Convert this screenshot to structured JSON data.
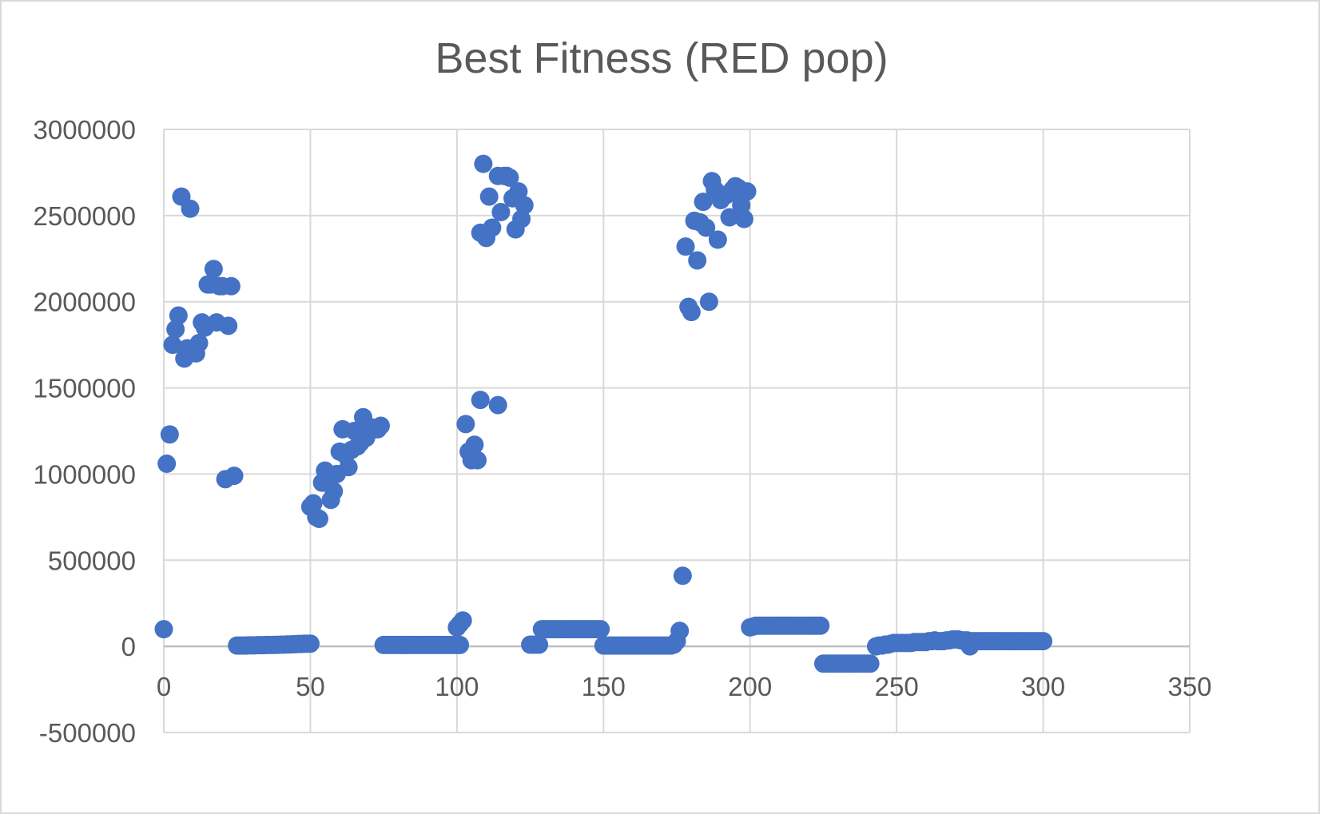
{
  "chart_data": {
    "type": "scatter",
    "title": "Best Fitness (RED pop)",
    "xlabel": "",
    "ylabel": "",
    "xlim": [
      0,
      350
    ],
    "ylim": [
      -500000,
      3000000
    ],
    "x_ticks": [
      0,
      50,
      100,
      150,
      200,
      250,
      300,
      350
    ],
    "x_tick_labels": [
      "0",
      "50",
      "100",
      "150",
      "200",
      "250",
      "300",
      "350"
    ],
    "y_ticks": [
      -500000,
      0,
      500000,
      1000000,
      1500000,
      2000000,
      2500000,
      3000000
    ],
    "y_tick_labels": [
      "-500000",
      "0",
      "500000",
      "1000000",
      "1500000",
      "2000000",
      "2500000",
      "3000000"
    ],
    "grid": true,
    "legend": "none",
    "series_color": "#4472c4",
    "points": [
      [
        0,
        100000
      ],
      [
        1,
        1060000
      ],
      [
        2,
        1230000
      ],
      [
        3,
        1750000
      ],
      [
        4,
        1840000
      ],
      [
        5,
        1920000
      ],
      [
        6,
        2610000
      ],
      [
        7,
        1670000
      ],
      [
        8,
        1730000
      ],
      [
        9,
        2540000
      ],
      [
        10,
        1720000
      ],
      [
        11,
        1700000
      ],
      [
        12,
        1760000
      ],
      [
        13,
        1880000
      ],
      [
        14,
        1850000
      ],
      [
        15,
        2100000
      ],
      [
        16,
        2100000
      ],
      [
        17,
        2190000
      ],
      [
        18,
        1880000
      ],
      [
        19,
        2090000
      ],
      [
        20,
        2090000
      ],
      [
        21,
        970000
      ],
      [
        22,
        1860000
      ],
      [
        23,
        2090000
      ],
      [
        24,
        990000
      ],
      [
        25,
        5000
      ],
      [
        26,
        5000
      ],
      [
        27,
        5000
      ],
      [
        28,
        5000
      ],
      [
        29,
        6000
      ],
      [
        30,
        6000
      ],
      [
        31,
        6000
      ],
      [
        32,
        7000
      ],
      [
        33,
        7000
      ],
      [
        34,
        7000
      ],
      [
        35,
        8000
      ],
      [
        36,
        8000
      ],
      [
        37,
        8000
      ],
      [
        38,
        9000
      ],
      [
        39,
        9000
      ],
      [
        40,
        10000
      ],
      [
        41,
        10000
      ],
      [
        42,
        11000
      ],
      [
        43,
        11000
      ],
      [
        44,
        12000
      ],
      [
        45,
        13000
      ],
      [
        46,
        14000
      ],
      [
        47,
        14000
      ],
      [
        48,
        15000
      ],
      [
        49,
        15000
      ],
      [
        50,
        16000
      ],
      [
        50,
        810000
      ],
      [
        51,
        830000
      ],
      [
        52,
        750000
      ],
      [
        53,
        740000
      ],
      [
        54,
        950000
      ],
      [
        55,
        1020000
      ],
      [
        56,
        990000
      ],
      [
        57,
        850000
      ],
      [
        58,
        900000
      ],
      [
        59,
        1000000
      ],
      [
        60,
        1130000
      ],
      [
        61,
        1260000
      ],
      [
        62,
        1110000
      ],
      [
        63,
        1040000
      ],
      [
        64,
        1140000
      ],
      [
        65,
        1250000
      ],
      [
        66,
        1160000
      ],
      [
        67,
        1180000
      ],
      [
        68,
        1330000
      ],
      [
        69,
        1210000
      ],
      [
        70,
        1250000
      ],
      [
        71,
        1270000
      ],
      [
        72,
        1260000
      ],
      [
        73,
        1260000
      ],
      [
        74,
        1280000
      ],
      [
        75,
        8000
      ],
      [
        76,
        8000
      ],
      [
        77,
        8000
      ],
      [
        78,
        8000
      ],
      [
        79,
        8000
      ],
      [
        80,
        8000
      ],
      [
        81,
        8000
      ],
      [
        82,
        8000
      ],
      [
        83,
        8000
      ],
      [
        84,
        8000
      ],
      [
        85,
        8000
      ],
      [
        86,
        8000
      ],
      [
        87,
        8000
      ],
      [
        88,
        8000
      ],
      [
        89,
        8000
      ],
      [
        90,
        8000
      ],
      [
        91,
        8000
      ],
      [
        92,
        8000
      ],
      [
        93,
        8000
      ],
      [
        94,
        8000
      ],
      [
        95,
        8000
      ],
      [
        96,
        8000
      ],
      [
        97,
        8000
      ],
      [
        98,
        8000
      ],
      [
        99,
        8000
      ],
      [
        100,
        8000
      ],
      [
        101,
        8000
      ],
      [
        100,
        110000
      ],
      [
        101,
        130000
      ],
      [
        102,
        150000
      ],
      [
        103,
        1290000
      ],
      [
        104,
        1130000
      ],
      [
        105,
        1080000
      ],
      [
        106,
        1170000
      ],
      [
        107,
        1080000
      ],
      [
        108,
        1430000
      ],
      [
        108,
        2400000
      ],
      [
        109,
        2800000
      ],
      [
        110,
        2370000
      ],
      [
        111,
        2610000
      ],
      [
        112,
        2430000
      ],
      [
        114,
        1400000
      ],
      [
        114,
        2730000
      ],
      [
        115,
        2520000
      ],
      [
        116,
        2730000
      ],
      [
        117,
        2730000
      ],
      [
        118,
        2720000
      ],
      [
        119,
        2600000
      ],
      [
        120,
        2420000
      ],
      [
        121,
        2640000
      ],
      [
        122,
        2480000
      ],
      [
        123,
        2560000
      ],
      [
        125,
        10000
      ],
      [
        126,
        10000
      ],
      [
        127,
        10000
      ],
      [
        128,
        10000
      ],
      [
        129,
        100000
      ],
      [
        130,
        100000
      ],
      [
        131,
        100000
      ],
      [
        132,
        100000
      ],
      [
        133,
        100000
      ],
      [
        134,
        100000
      ],
      [
        135,
        100000
      ],
      [
        136,
        100000
      ],
      [
        137,
        100000
      ],
      [
        138,
        100000
      ],
      [
        139,
        100000
      ],
      [
        140,
        100000
      ],
      [
        141,
        100000
      ],
      [
        142,
        100000
      ],
      [
        143,
        100000
      ],
      [
        144,
        100000
      ],
      [
        145,
        100000
      ],
      [
        146,
        100000
      ],
      [
        147,
        100000
      ],
      [
        148,
        100000
      ],
      [
        149,
        100000
      ],
      [
        150,
        5000
      ],
      [
        151,
        5000
      ],
      [
        152,
        5000
      ],
      [
        153,
        5000
      ],
      [
        154,
        5000
      ],
      [
        155,
        5000
      ],
      [
        156,
        5000
      ],
      [
        157,
        5000
      ],
      [
        158,
        5000
      ],
      [
        159,
        5000
      ],
      [
        160,
        5000
      ],
      [
        161,
        5000
      ],
      [
        162,
        5000
      ],
      [
        163,
        5000
      ],
      [
        164,
        5000
      ],
      [
        165,
        5000
      ],
      [
        166,
        5000
      ],
      [
        167,
        5000
      ],
      [
        168,
        5000
      ],
      [
        169,
        5000
      ],
      [
        170,
        5000
      ],
      [
        171,
        5000
      ],
      [
        172,
        5000
      ],
      [
        173,
        5000
      ],
      [
        174,
        10000
      ],
      [
        175,
        30000
      ],
      [
        176,
        90000
      ],
      [
        177,
        410000
      ],
      [
        178,
        2320000
      ],
      [
        179,
        1970000
      ],
      [
        180,
        1940000
      ],
      [
        181,
        2470000
      ],
      [
        182,
        2240000
      ],
      [
        183,
        2460000
      ],
      [
        184,
        2580000
      ],
      [
        185,
        2430000
      ],
      [
        186,
        2000000
      ],
      [
        187,
        2700000
      ],
      [
        188,
        2650000
      ],
      [
        189,
        2360000
      ],
      [
        190,
        2590000
      ],
      [
        191,
        2620000
      ],
      [
        192,
        2620000
      ],
      [
        193,
        2490000
      ],
      [
        194,
        2650000
      ],
      [
        195,
        2670000
      ],
      [
        196,
        2660000
      ],
      [
        197,
        2560000
      ],
      [
        198,
        2480000
      ],
      [
        199,
        2640000
      ],
      [
        200,
        110000
      ],
      [
        201,
        115000
      ],
      [
        202,
        120000
      ],
      [
        203,
        120000
      ],
      [
        204,
        120000
      ],
      [
        205,
        120000
      ],
      [
        206,
        120000
      ],
      [
        207,
        120000
      ],
      [
        208,
        120000
      ],
      [
        209,
        120000
      ],
      [
        210,
        120000
      ],
      [
        211,
        120000
      ],
      [
        212,
        120000
      ],
      [
        213,
        120000
      ],
      [
        214,
        120000
      ],
      [
        215,
        120000
      ],
      [
        216,
        120000
      ],
      [
        217,
        120000
      ],
      [
        218,
        120000
      ],
      [
        219,
        120000
      ],
      [
        220,
        120000
      ],
      [
        221,
        120000
      ],
      [
        222,
        120000
      ],
      [
        223,
        120000
      ],
      [
        224,
        120000
      ],
      [
        225,
        -100000
      ],
      [
        226,
        -100000
      ],
      [
        227,
        -100000
      ],
      [
        228,
        -100000
      ],
      [
        229,
        -100000
      ],
      [
        230,
        -100000
      ],
      [
        231,
        -100000
      ],
      [
        232,
        -100000
      ],
      [
        233,
        -100000
      ],
      [
        234,
        -100000
      ],
      [
        235,
        -100000
      ],
      [
        236,
        -100000
      ],
      [
        237,
        -100000
      ],
      [
        238,
        -100000
      ],
      [
        239,
        -100000
      ],
      [
        240,
        -100000
      ],
      [
        241,
        -100000
      ],
      [
        243,
        0
      ],
      [
        244,
        5000
      ],
      [
        245,
        5000
      ],
      [
        246,
        10000
      ],
      [
        247,
        10000
      ],
      [
        248,
        15000
      ],
      [
        249,
        20000
      ],
      [
        250,
        20000
      ],
      [
        251,
        20000
      ],
      [
        252,
        20000
      ],
      [
        253,
        20000
      ],
      [
        254,
        20000
      ],
      [
        255,
        20000
      ],
      [
        256,
        25000
      ],
      [
        257,
        25000
      ],
      [
        258,
        25000
      ],
      [
        259,
        25000
      ],
      [
        260,
        25000
      ],
      [
        261,
        30000
      ],
      [
        262,
        30000
      ],
      [
        263,
        35000
      ],
      [
        264,
        30000
      ],
      [
        265,
        30000
      ],
      [
        266,
        30000
      ],
      [
        267,
        35000
      ],
      [
        268,
        35000
      ],
      [
        269,
        40000
      ],
      [
        270,
        40000
      ],
      [
        271,
        40000
      ],
      [
        272,
        35000
      ],
      [
        273,
        35000
      ],
      [
        274,
        35000
      ],
      [
        275,
        0
      ],
      [
        276,
        30000
      ],
      [
        277,
        30000
      ],
      [
        278,
        30000
      ],
      [
        279,
        30000
      ],
      [
        280,
        30000
      ],
      [
        281,
        30000
      ],
      [
        282,
        30000
      ],
      [
        283,
        30000
      ],
      [
        284,
        30000
      ],
      [
        285,
        30000
      ],
      [
        286,
        30000
      ],
      [
        287,
        30000
      ],
      [
        288,
        30000
      ],
      [
        289,
        30000
      ],
      [
        290,
        30000
      ],
      [
        291,
        30000
      ],
      [
        292,
        30000
      ],
      [
        293,
        30000
      ],
      [
        294,
        30000
      ],
      [
        295,
        30000
      ],
      [
        296,
        30000
      ],
      [
        297,
        30000
      ],
      [
        298,
        30000
      ],
      [
        299,
        30000
      ],
      [
        300,
        30000
      ]
    ]
  }
}
